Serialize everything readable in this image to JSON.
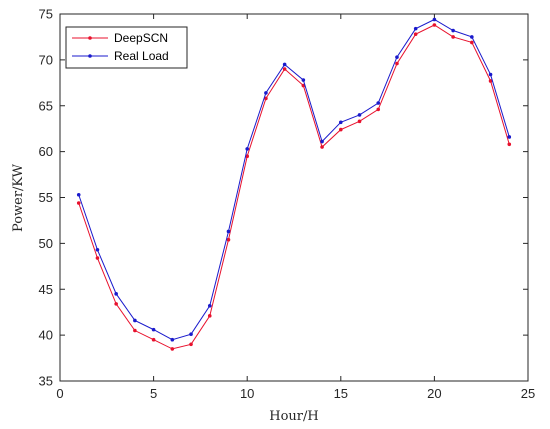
{
  "chart_data": {
    "type": "line",
    "xlabel": "Hour/H",
    "ylabel": "Power/KW",
    "xlim": [
      0,
      25
    ],
    "ylim": [
      35,
      75
    ],
    "xticks": [
      0,
      5,
      10,
      15,
      20,
      25
    ],
    "yticks": [
      35,
      40,
      45,
      50,
      55,
      60,
      65,
      70,
      75
    ],
    "grid": false,
    "legend_position": "top-left",
    "x": [
      1,
      2,
      3,
      4,
      5,
      6,
      7,
      8,
      9,
      10,
      11,
      12,
      13,
      14,
      15,
      16,
      17,
      18,
      19,
      20,
      21,
      22,
      23,
      24
    ],
    "series": [
      {
        "name": "DeepSCN",
        "color": "#e8112d",
        "values": [
          54.4,
          48.4,
          43.4,
          40.5,
          39.5,
          38.5,
          39.0,
          42.1,
          50.4,
          59.5,
          65.8,
          69.0,
          67.2,
          60.5,
          62.4,
          63.3,
          64.6,
          69.6,
          72.8,
          73.8,
          72.5,
          71.9,
          67.7,
          60.8
        ]
      },
      {
        "name": "Real Load",
        "color": "#1a1acc",
        "values": [
          55.3,
          49.3,
          44.5,
          41.6,
          40.6,
          39.5,
          40.1,
          43.2,
          51.3,
          60.3,
          66.4,
          69.5,
          67.8,
          61.1,
          63.2,
          64.0,
          65.3,
          70.3,
          73.4,
          74.4,
          73.2,
          72.5,
          68.4,
          61.6
        ]
      }
    ]
  }
}
